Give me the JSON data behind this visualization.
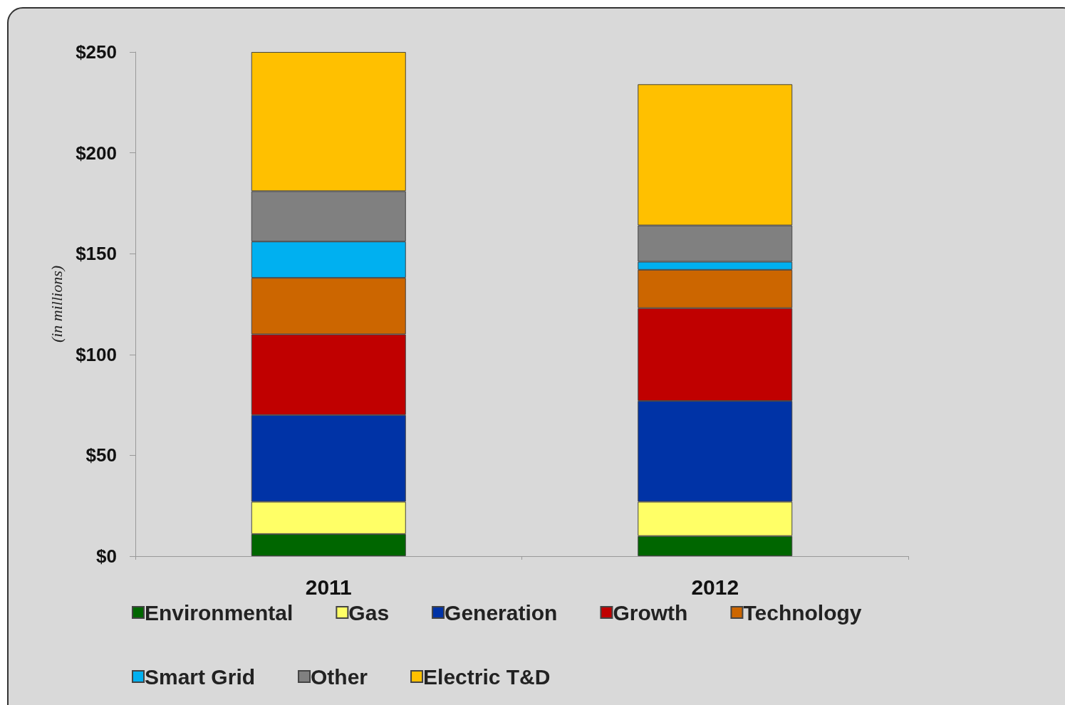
{
  "chart_data": {
    "type": "bar",
    "stacked": true,
    "ylabel": "(in millions)",
    "categories": [
      "2011",
      "2012"
    ],
    "series": [
      {
        "name": "Environmental",
        "color": "#006600",
        "values": [
          11,
          10
        ]
      },
      {
        "name": "Gas",
        "color": "#ffff66",
        "values": [
          16,
          17
        ]
      },
      {
        "name": "Generation",
        "color": "#0033a6",
        "values": [
          43,
          50
        ]
      },
      {
        "name": "Growth",
        "color": "#c00000",
        "values": [
          40,
          46
        ]
      },
      {
        "name": "Technology",
        "color": "#cc6600",
        "values": [
          28,
          19
        ]
      },
      {
        "name": "Smart Grid",
        "color": "#00b0f0",
        "values": [
          18,
          4
        ]
      },
      {
        "name": "Other",
        "color": "#808080",
        "values": [
          25,
          18
        ]
      },
      {
        "name": "Electric T&D",
        "color": "#ffc000",
        "values": [
          69,
          70
        ]
      }
    ],
    "ylim": [
      0,
      250
    ],
    "yticks": [
      {
        "value": 0,
        "label": "$0"
      },
      {
        "value": 50,
        "label": "$50"
      },
      {
        "value": 100,
        "label": "$100"
      },
      {
        "value": 150,
        "label": "$150"
      },
      {
        "value": 200,
        "label": "$200"
      },
      {
        "value": 250,
        "label": "$250"
      }
    ],
    "grid": false,
    "legend": "bottom"
  }
}
